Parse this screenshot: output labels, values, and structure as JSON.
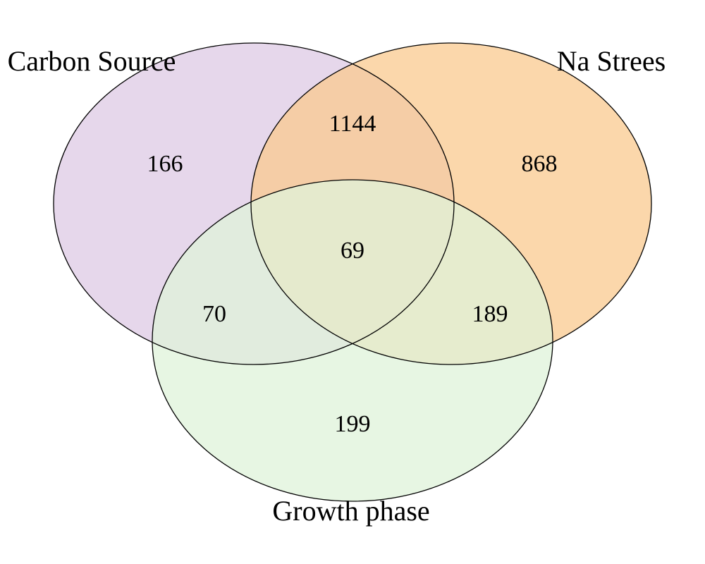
{
  "chart_data": {
    "type": "venn",
    "sets": [
      {
        "key": "carbon",
        "name": "Carbon Source",
        "color": "#e6d7eb"
      },
      {
        "key": "na",
        "name": "Na Strees",
        "color": "#fac98f"
      },
      {
        "key": "growth",
        "name": "Growth phase",
        "color": "#dff3d9"
      }
    ],
    "regions": [
      {
        "sets": [
          "carbon"
        ],
        "label": "166"
      },
      {
        "sets": [
          "na"
        ],
        "label": "868"
      },
      {
        "sets": [
          "carbon",
          "na"
        ],
        "label": "1144"
      },
      {
        "sets": [
          "carbon",
          "na",
          "growth"
        ],
        "label": "69"
      },
      {
        "sets": [
          "carbon",
          "growth"
        ],
        "label": "70"
      },
      {
        "sets": [
          "na",
          "growth"
        ],
        "label": "189"
      },
      {
        "sets": [
          "growth"
        ],
        "label": "199"
      }
    ]
  }
}
